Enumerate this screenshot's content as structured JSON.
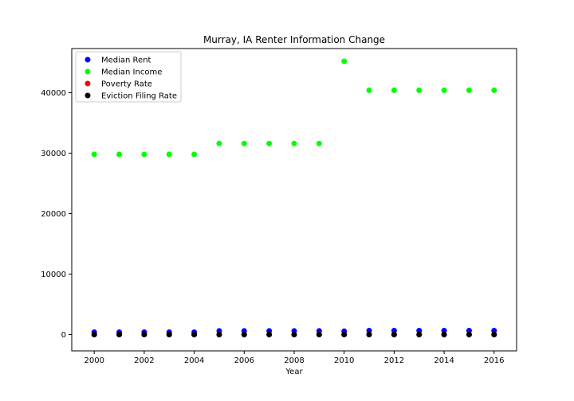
{
  "chart_data": {
    "type": "scatter",
    "title": "Murray, IA Renter Information Change",
    "xlabel": "Year",
    "ylabel": "",
    "xlim": [
      1999.1,
      2016.9
    ],
    "ylim": [
      -2700,
      47300
    ],
    "xticks": [
      2000,
      2002,
      2004,
      2006,
      2008,
      2010,
      2012,
      2014,
      2016
    ],
    "yticks": [
      0,
      10000,
      20000,
      30000,
      40000
    ],
    "grid": false,
    "legend_position": "upper left",
    "x": [
      2000,
      2001,
      2002,
      2003,
      2004,
      2005,
      2006,
      2007,
      2008,
      2009,
      2010,
      2011,
      2012,
      2013,
      2014,
      2015,
      2016
    ],
    "series": [
      {
        "name": "Median Rent",
        "color": "#0000ff",
        "values": [
          400,
          400,
          400,
          400,
          400,
          600,
          600,
          600,
          600,
          600,
          550,
          650,
          650,
          650,
          650,
          650,
          650
        ]
      },
      {
        "name": "Median Income",
        "color": "#00ff00",
        "values": [
          29800,
          29800,
          29800,
          29800,
          29800,
          31600,
          31600,
          31600,
          31600,
          31600,
          45200,
          40400,
          40400,
          40400,
          40400,
          40400,
          40400
        ]
      },
      {
        "name": "Poverty Rate",
        "color": "#ff0000",
        "values": [
          5,
          5,
          5,
          5,
          5,
          6,
          6,
          6,
          6,
          6,
          8,
          7,
          7,
          7,
          7,
          7,
          7
        ]
      },
      {
        "name": "Eviction Filing Rate",
        "color": "#000000",
        "values": [
          0,
          0,
          0,
          0,
          0,
          0,
          0,
          0,
          0,
          0,
          0,
          0,
          0,
          0,
          0,
          0,
          0
        ]
      }
    ]
  }
}
